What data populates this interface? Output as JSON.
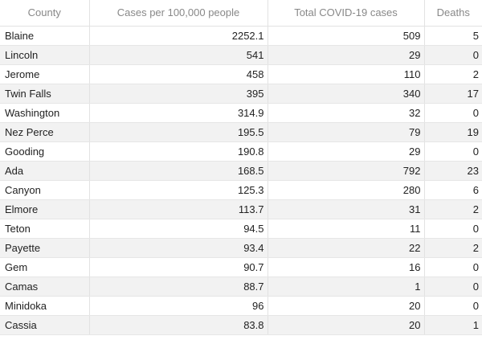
{
  "table": {
    "headers": [
      "County",
      "Cases per 100,000 people",
      "Total COVID-19 cases",
      "Deaths"
    ],
    "rows": [
      [
        "Blaine",
        "2252.1",
        "509",
        "5"
      ],
      [
        "Lincoln",
        "541",
        "29",
        "0"
      ],
      [
        "Jerome",
        "458",
        "110",
        "2"
      ],
      [
        "Twin Falls",
        "395",
        "340",
        "17"
      ],
      [
        "Washington",
        "314.9",
        "32",
        "0"
      ],
      [
        "Nez Perce",
        "195.5",
        "79",
        "19"
      ],
      [
        "Gooding",
        "190.8",
        "29",
        "0"
      ],
      [
        "Ada",
        "168.5",
        "792",
        "23"
      ],
      [
        "Canyon",
        "125.3",
        "280",
        "6"
      ],
      [
        "Elmore",
        "113.7",
        "31",
        "2"
      ],
      [
        "Teton",
        "94.5",
        "11",
        "0"
      ],
      [
        "Payette",
        "93.4",
        "22",
        "2"
      ],
      [
        "Gem",
        "90.7",
        "16",
        "0"
      ],
      [
        "Camas",
        "88.7",
        "1",
        "0"
      ],
      [
        "Minidoka",
        "96",
        "20",
        "0"
      ],
      [
        "Cassia",
        "83.8",
        "20",
        "1"
      ]
    ]
  }
}
